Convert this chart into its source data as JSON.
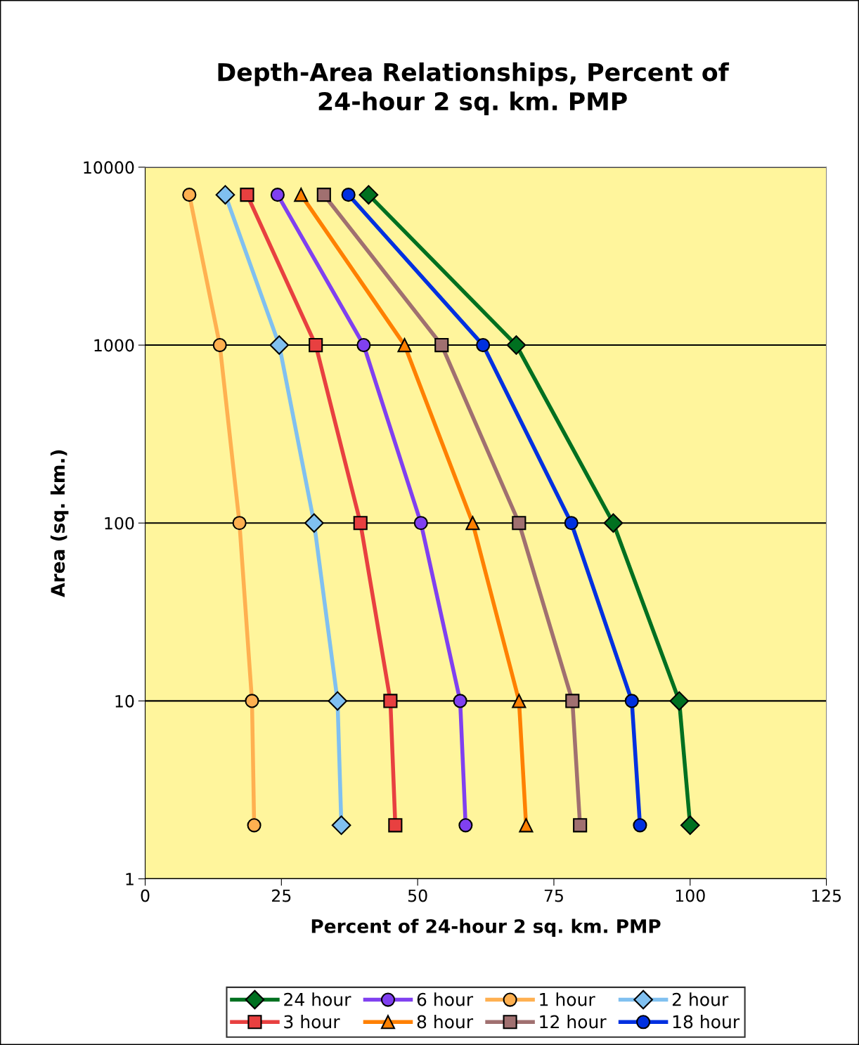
{
  "chart_data": {
    "type": "line",
    "title": "Depth-Area Relationships, Percent of\n24-hour 2 sq. km. PMP",
    "xlabel": "Percent of 24-hour 2 sq. km. PMP",
    "ylabel": "Area (sq. km.)",
    "log": "y",
    "xlim": [
      0,
      125
    ],
    "xticks": [
      0,
      25,
      50,
      75,
      100,
      125
    ],
    "ylim": [
      1,
      10000
    ],
    "yticks": [
      1,
      10,
      100,
      1000,
      10000
    ],
    "grid": "y",
    "legend": "bottom",
    "line_style": "solid",
    "series": [
      {
        "name": "24 hour",
        "color": "#007020",
        "marker": "diamond",
        "x": [
          41.0,
          68.1,
          85.9,
          98.0,
          100.0
        ],
        "values": [
          7000,
          1000,
          100,
          10,
          2
        ]
      },
      {
        "name": "6 hour",
        "color": "#8040f0",
        "marker": "circle",
        "x": [
          24.3,
          40.1,
          50.6,
          57.8,
          58.8
        ],
        "values": [
          7000,
          1000,
          100,
          10,
          2
        ]
      },
      {
        "name": "1 hour",
        "color": "#ffb050",
        "marker": "circle",
        "x": [
          8.1,
          13.7,
          17.3,
          19.6,
          20.0
        ],
        "values": [
          7000,
          1000,
          100,
          10,
          2
        ]
      },
      {
        "name": "2 hour",
        "color": "#80c0f0",
        "marker": "diamond",
        "x": [
          14.7,
          24.6,
          31.0,
          35.3,
          36.0
        ],
        "values": [
          7000,
          1000,
          100,
          10,
          2
        ]
      },
      {
        "name": "3 hour",
        "color": "#e84040",
        "marker": "square",
        "x": [
          18.7,
          31.3,
          39.5,
          45.0,
          45.9
        ],
        "values": [
          7000,
          1000,
          100,
          10,
          2
        ]
      },
      {
        "name": "8 hour",
        "color": "#ff8000",
        "marker": "triangle",
        "x": [
          28.6,
          47.6,
          60.1,
          68.6,
          69.9
        ],
        "values": [
          7000,
          1000,
          100,
          10,
          2
        ]
      },
      {
        "name": "12 hour",
        "color": "#a07070",
        "marker": "square",
        "x": [
          32.8,
          54.4,
          68.6,
          78.4,
          79.8
        ],
        "values": [
          7000,
          1000,
          100,
          10,
          2
        ]
      },
      {
        "name": "18 hour",
        "color": "#0030e0",
        "marker": "circle",
        "x": [
          37.3,
          62.0,
          78.2,
          89.3,
          90.8
        ],
        "values": [
          7000,
          1000,
          100,
          10,
          2
        ]
      }
    ]
  }
}
